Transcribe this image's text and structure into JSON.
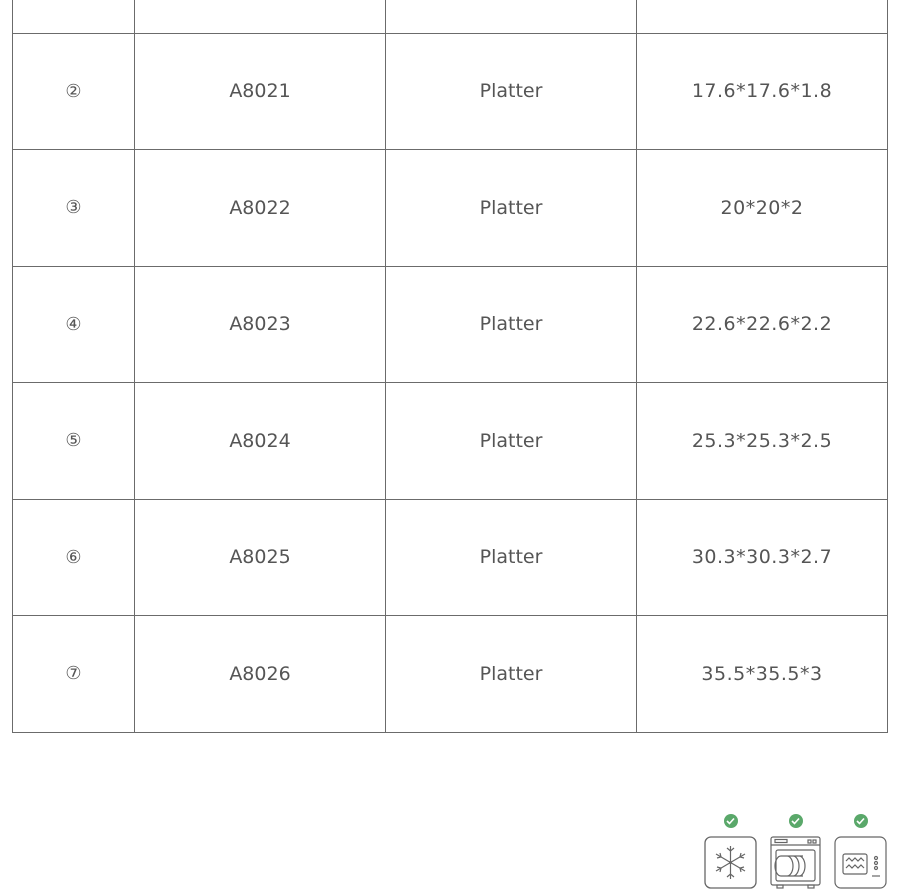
{
  "table": {
    "rows": [
      {
        "index": "",
        "code": "",
        "name": "",
        "size": ""
      },
      {
        "index": "②",
        "code": "A8021",
        "name": "Platter",
        "size": "17.6*17.6*1.8"
      },
      {
        "index": "③",
        "code": "A8022",
        "name": "Platter",
        "size": "20*20*2"
      },
      {
        "index": "④",
        "code": "A8023",
        "name": "Platter",
        "size": "22.6*22.6*2.2"
      },
      {
        "index": "⑤",
        "code": "A8024",
        "name": "Platter",
        "size": "25.3*25.3*2.5"
      },
      {
        "index": "⑥",
        "code": "A8025",
        "name": "Platter",
        "size": "30.3*30.3*2.7"
      },
      {
        "index": "⑦",
        "code": "A8026",
        "name": "Platter",
        "size": "35.5*35.5*3"
      }
    ]
  },
  "icons": [
    {
      "name": "freezer-safe-icon",
      "checked": true
    },
    {
      "name": "dishwasher-safe-icon",
      "checked": true
    },
    {
      "name": "microwave-safe-icon",
      "checked": true
    }
  ],
  "colors": {
    "check": "#5aa86a",
    "border": "#6b6b6b",
    "text": "#555555"
  }
}
